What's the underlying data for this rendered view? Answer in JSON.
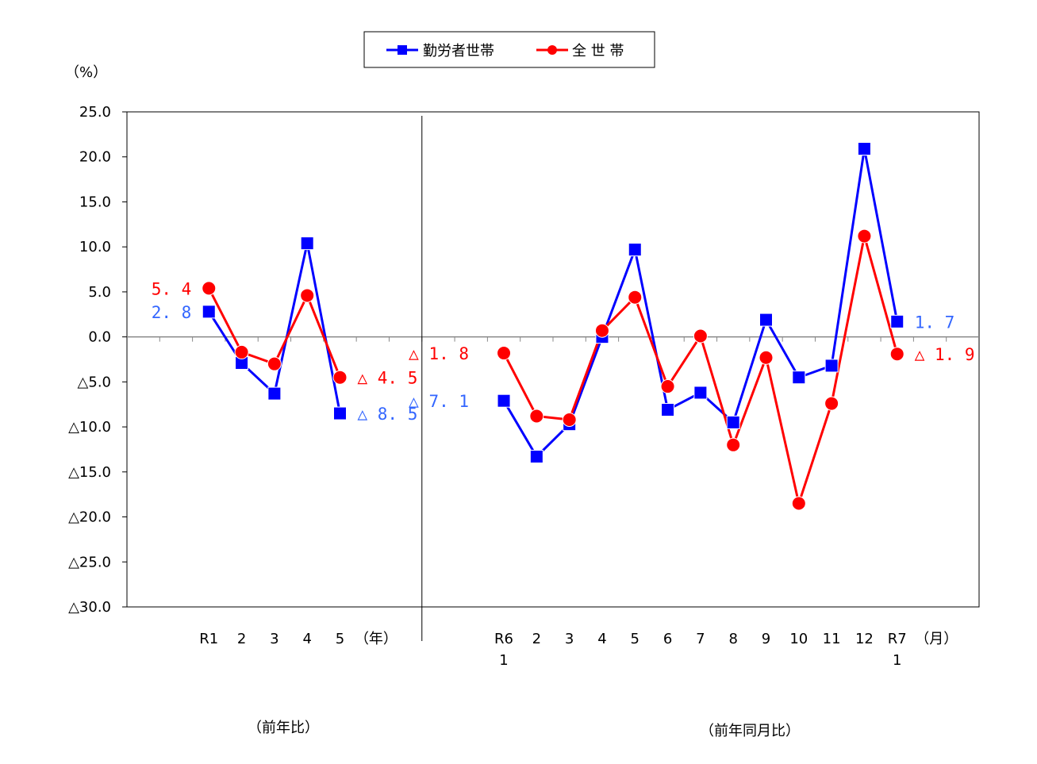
{
  "chart_data": {
    "type": "line",
    "unit_label": "（%）",
    "ylim": [
      -30,
      25
    ],
    "y_ticks": [
      {
        "value": 25,
        "label": "25.0"
      },
      {
        "value": 20,
        "label": "20.0"
      },
      {
        "value": 15,
        "label": "15.0"
      },
      {
        "value": 10,
        "label": "10.0"
      },
      {
        "value": 5,
        "label": "5.0"
      },
      {
        "value": 0,
        "label": "0.0"
      },
      {
        "value": -5,
        "label": "△5.0"
      },
      {
        "value": -10,
        "label": "△10.0"
      },
      {
        "value": -15,
        "label": "△15.0"
      },
      {
        "value": -20,
        "label": "△20.0"
      },
      {
        "value": -25,
        "label": "△25.0"
      },
      {
        "value": -30,
        "label": "△30.0"
      }
    ],
    "legend": {
      "placement": "top-center"
    },
    "colors": {
      "worker": "#0000ff",
      "all": "#ff0000",
      "worker_label": "#3366ff"
    },
    "panels": [
      {
        "caption": "（前年比）",
        "unit": "（年）",
        "categories": [
          [
            "R1"
          ],
          [
            "2"
          ],
          [
            "3"
          ],
          [
            "4"
          ],
          [
            "5"
          ]
        ],
        "series": [
          {
            "name": "勤労者世帯",
            "marker": "square",
            "values": [
              2.8,
              -2.9,
              -6.3,
              10.4,
              -8.5
            ]
          },
          {
            "name": "全 世 帯",
            "marker": "circle",
            "values": [
              5.4,
              -1.7,
              -3.0,
              4.6,
              -4.5
            ]
          }
        ],
        "data_labels": [
          {
            "series": "勤労者世帯",
            "index": 0,
            "text": "2. 8"
          },
          {
            "series": "全 世 帯",
            "index": 0,
            "text": "5. 4"
          },
          {
            "series": "勤労者世帯",
            "index": 4,
            "text": "△ 8. 5"
          },
          {
            "series": "全 世 帯",
            "index": 4,
            "text": "△ 4. 5"
          }
        ]
      },
      {
        "caption": "（前年同月比）",
        "unit": "（月）",
        "categories": [
          [
            "R6",
            "1"
          ],
          [
            "2"
          ],
          [
            "3"
          ],
          [
            "4"
          ],
          [
            "5"
          ],
          [
            "6"
          ],
          [
            "7"
          ],
          [
            "8"
          ],
          [
            "9"
          ],
          [
            "10"
          ],
          [
            "11"
          ],
          [
            "12"
          ],
          [
            "R7",
            "1"
          ]
        ],
        "series": [
          {
            "name": "勤労者世帯",
            "marker": "square",
            "values": [
              -7.1,
              -13.3,
              -9.7,
              0.0,
              9.7,
              -8.1,
              -6.2,
              -9.5,
              1.9,
              -4.5,
              -3.2,
              20.9,
              1.7
            ]
          },
          {
            "name": "全 世 帯",
            "marker": "circle",
            "values": [
              -1.8,
              -8.8,
              -9.2,
              0.7,
              4.4,
              -5.5,
              0.1,
              -12.0,
              -2.3,
              -18.5,
              -7.4,
              11.2,
              -1.9
            ]
          }
        ],
        "data_labels": [
          {
            "series": "勤労者世帯",
            "index": 0,
            "text": "△ 7. 1"
          },
          {
            "series": "全 世 帯",
            "index": 0,
            "text": "△ 1. 8"
          },
          {
            "series": "勤労者世帯",
            "index": 12,
            "text": "1. 7"
          },
          {
            "series": "全 世 帯",
            "index": 12,
            "text": "△ 1. 9"
          }
        ]
      }
    ]
  }
}
